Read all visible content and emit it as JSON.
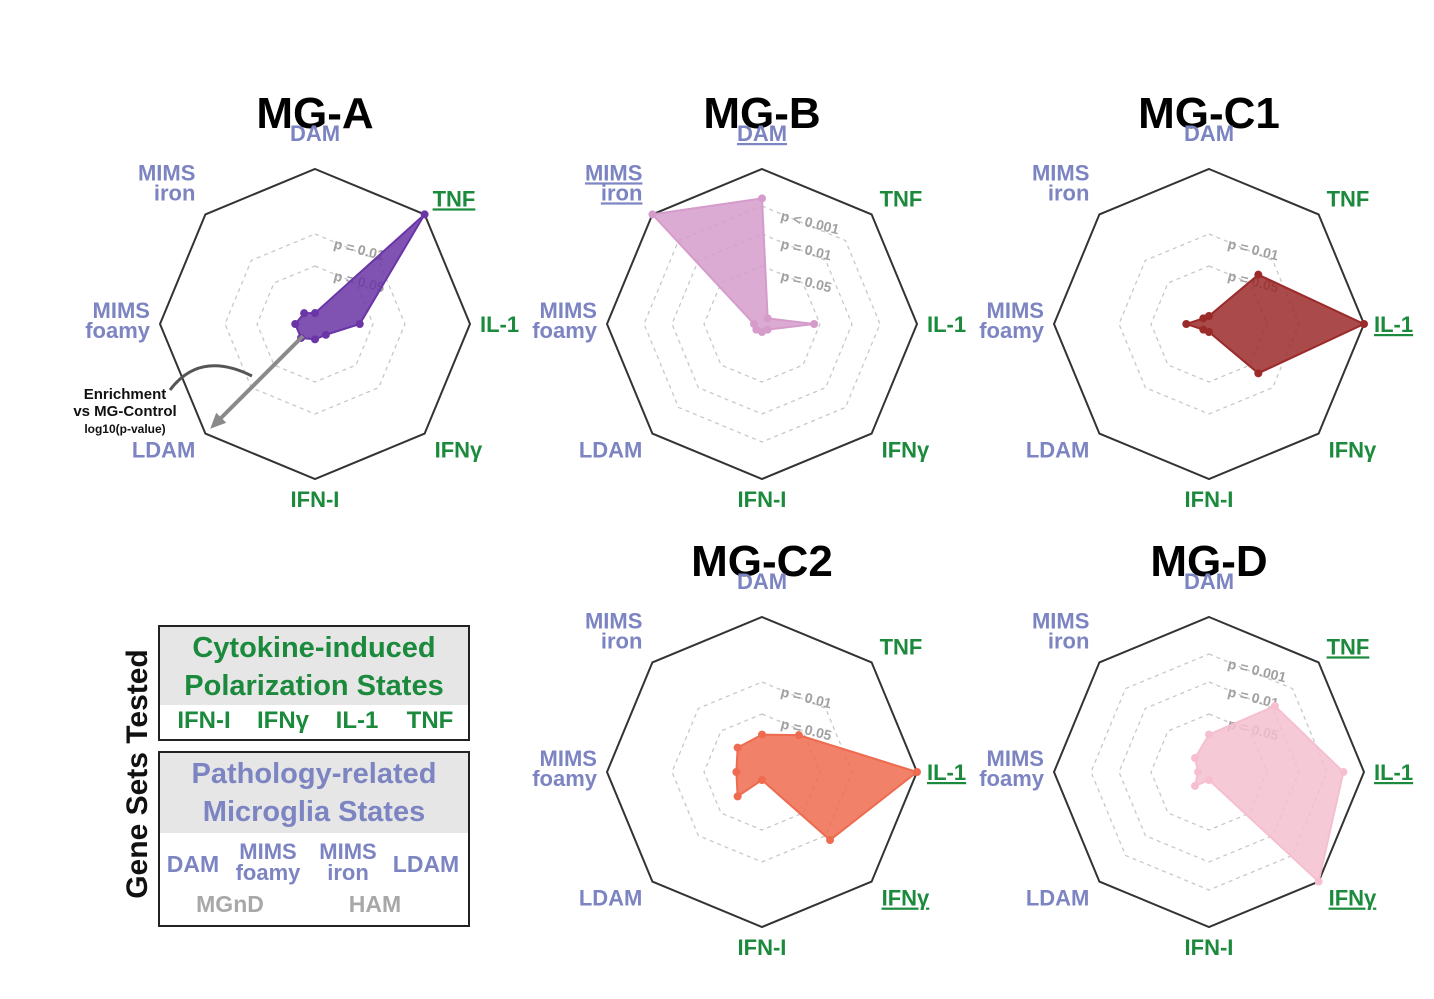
{
  "axes": [
    "DAM",
    "TNF",
    "IL-1",
    "IFNγ",
    "IFN-I",
    "LDAM",
    "MIMS foamy",
    "MIMS iron"
  ],
  "axis_groups": {
    "cytokine": [
      "TNF",
      "IL-1",
      "IFNγ",
      "IFN-I"
    ],
    "pathology": [
      "DAM",
      "LDAM",
      "MIMS foamy",
      "MIMS iron"
    ]
  },
  "colors": {
    "cytokine_text": "#1b8a3c",
    "pathology_text": "#7c84c2",
    "other_text": "#a8a8a8",
    "frame": "#333333",
    "dashed": "#c8c8c8",
    "MG-A": "#6a35a6",
    "MG-B": "#d59ccb",
    "MG-C1": "#9b2a2a",
    "MG-C2": "#ee6b4f",
    "MG-D": "#f5bfd0"
  },
  "chart_data": [
    {
      "type": "radar",
      "title": "MG-A",
      "underlined_axes": [
        "TNF"
      ],
      "rings": [
        {
          "label": "p = 0.01"
        },
        {
          "label": "p = 0.05"
        }
      ],
      "values": {
        "DAM": 0.02,
        "TNF": 1.0,
        "IL-1": 0.25,
        "IFNγ": 0.05,
        "IFN-I": 0.05,
        "LDAM": 0.08,
        "MIMS foamy": 0.08,
        "MIMS iron": 0.05
      },
      "annotation": {
        "line1": "Enrichment",
        "line2": "vs MG-Control",
        "line3": "log10(p-value)"
      }
    },
    {
      "type": "radar",
      "title": "MG-B",
      "underlined_axes": [
        "DAM",
        "MIMS iron"
      ],
      "rings": [
        {
          "label": "p < 0.001"
        },
        {
          "label": "p = 0.01"
        },
        {
          "label": "p = 0.05"
        }
      ],
      "values": {
        "DAM": 0.8,
        "TNF": 0.0,
        "IL-1": 0.3,
        "IFNγ": 0.0,
        "IFN-I": 0.0,
        "LDAM": 0.0,
        "MIMS foamy": 0.0,
        "MIMS iron": 1.0
      }
    },
    {
      "type": "radar",
      "title": "MG-C1",
      "underlined_axes": [
        "IL-1"
      ],
      "rings": [
        {
          "label": "p = 0.01"
        },
        {
          "label": "p = 0.05"
        }
      ],
      "values": {
        "DAM": 0.0,
        "TNF": 0.42,
        "IL-1": 1.0,
        "IFNγ": 0.42,
        "IFN-I": 0.0,
        "LDAM": 0.0,
        "MIMS foamy": 0.1,
        "MIMS iron": 0.0
      }
    },
    {
      "type": "radar",
      "title": "MG-C2",
      "underlined_axes": [
        "IL-1",
        "IFNγ"
      ],
      "rings": [
        {
          "label": "p = 0.01"
        },
        {
          "label": "p = 0.05"
        }
      ],
      "values": {
        "DAM": 0.2,
        "TNF": 0.3,
        "IL-1": 1.0,
        "IFNγ": 0.6,
        "IFN-I": 0.0,
        "LDAM": 0.18,
        "MIMS foamy": 0.12,
        "MIMS iron": 0.18
      }
    },
    {
      "type": "radar",
      "title": "MG-D",
      "underlined_axes": [
        "TNF",
        "IL-1",
        "IFNγ"
      ],
      "rings": [
        {
          "label": "p = 0.001"
        },
        {
          "label": "p = 0.01"
        },
        {
          "label": "p = 0.05"
        }
      ],
      "values": {
        "DAM": 0.2,
        "TNF": 0.58,
        "IL-1": 0.86,
        "IFNγ": 1.0,
        "IFN-I": 0.0,
        "LDAM": 0.08,
        "MIMS foamy": 0.02,
        "MIMS iron": 0.08
      }
    }
  ],
  "legend": {
    "side_label": "Gene Sets Tested",
    "cytokine_box": {
      "title_line1": "Cytokine-induced",
      "title_line2": "Polarization States",
      "items": [
        "IFN-I",
        "IFNγ",
        "IL-1",
        "TNF"
      ]
    },
    "pathology_box": {
      "title_line1": "Pathology-related",
      "title_line2": "Microglia States",
      "items": [
        "DAM",
        "MIMS foamy",
        "MIMS iron",
        "LDAM"
      ],
      "other_items": [
        "MGnD",
        "HAM"
      ]
    }
  }
}
